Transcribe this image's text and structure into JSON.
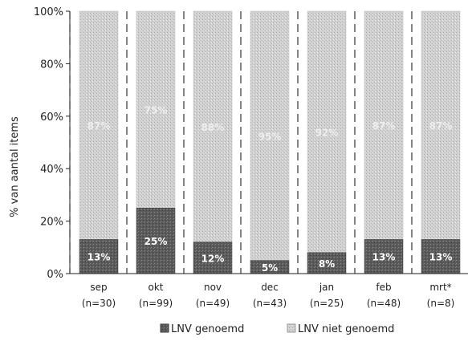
{
  "chart_data": {
    "type": "bar",
    "stacked": true,
    "percent_stacked": true,
    "categories": [
      "sep",
      "okt",
      "nov",
      "dec",
      "jan",
      "feb",
      "mrt*"
    ],
    "category_counts": [
      "(n=30)",
      "(n=99)",
      "(n=49)",
      "(n=43)",
      "(n=25)",
      "(n=48)",
      "(n=8)"
    ],
    "series": [
      {
        "name": "LNV genoemd",
        "values": [
          13,
          25,
          12,
          5,
          8,
          13,
          13
        ],
        "labels": [
          "13%",
          "25%",
          "12%",
          "5%",
          "8%",
          "13%",
          "13%"
        ],
        "color": "#555555"
      },
      {
        "name": "LNV niet genoemd",
        "values": [
          87,
          75,
          88,
          95,
          92,
          87,
          87
        ],
        "labels": [
          "87%",
          "75%",
          "88%",
          "95%",
          "92%",
          "87%",
          "87%"
        ],
        "color": "#cfcfcf"
      }
    ],
    "ylabel": "% van aantal items",
    "xlabel": "",
    "ylim": [
      0,
      100
    ],
    "yticks": [
      "0%",
      "20%",
      "40%",
      "60%",
      "80%",
      "100%"
    ],
    "legend_position": "bottom",
    "grid": "vertical dashed"
  }
}
